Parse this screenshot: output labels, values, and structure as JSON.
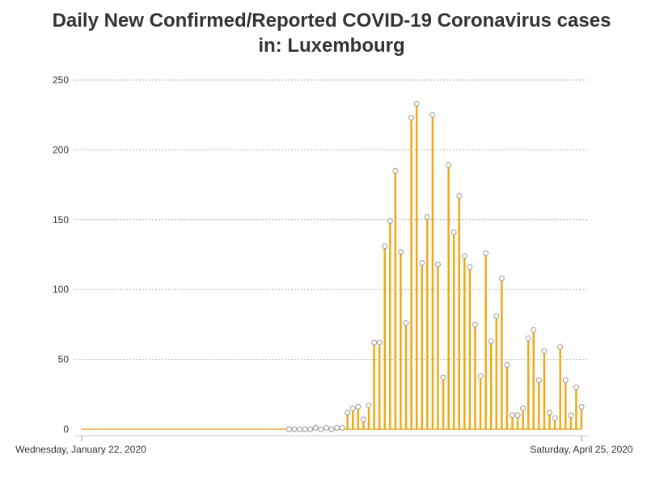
{
  "chart_data": {
    "type": "bar",
    "title_line1": "Daily New Confirmed/Reported COVID-19 Coronavirus cases",
    "title_line2": "in: Luxembourg",
    "x_start_label": "Wednesday, January 22, 2020",
    "x_end_label": "Saturday, April 25, 2020",
    "yticks": [
      "0",
      "50",
      "100",
      "150",
      "200",
      "250"
    ],
    "ylim": [
      0,
      250
    ],
    "grid": true,
    "color": "#f3a712",
    "marker_start_index": 39,
    "values": [
      0,
      0,
      0,
      0,
      0,
      0,
      0,
      0,
      0,
      0,
      0,
      0,
      0,
      0,
      0,
      0,
      0,
      0,
      0,
      0,
      0,
      0,
      0,
      0,
      0,
      0,
      0,
      0,
      0,
      0,
      0,
      0,
      0,
      0,
      0,
      0,
      0,
      0,
      0,
      0,
      0,
      0,
      0,
      0,
      1,
      0,
      1,
      0,
      1,
      1,
      12,
      15,
      16,
      7,
      17,
      62,
      62,
      131,
      149,
      185,
      127,
      76,
      223,
      233,
      119,
      152,
      225,
      118,
      37,
      189,
      141,
      167,
      124,
      116,
      75,
      38,
      126,
      63,
      81,
      108,
      46,
      10,
      10,
      15,
      65,
      71,
      35,
      56,
      12,
      8,
      59,
      35,
      10,
      30,
      16
    ]
  }
}
